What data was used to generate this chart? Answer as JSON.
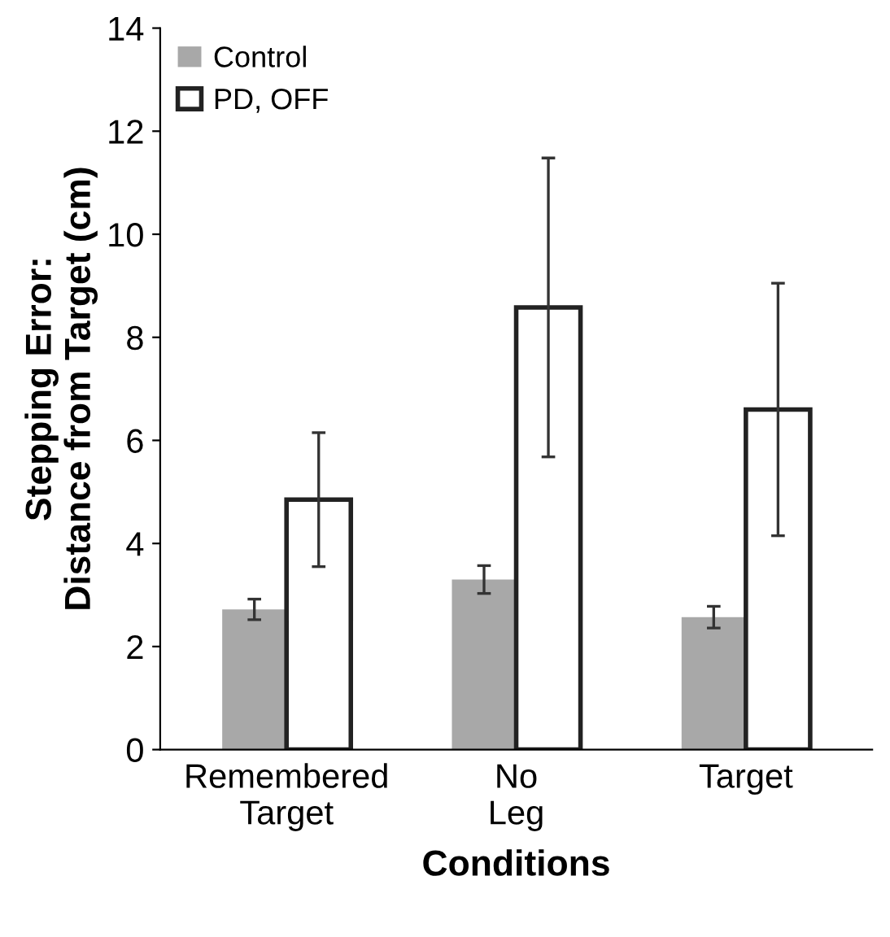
{
  "chart_data": {
    "type": "bar",
    "xlabel": "Conditions",
    "ylabel": "Stepping Error:\nDistance from Target (cm)",
    "categories": [
      "Remembered\nTarget",
      "No\nLeg",
      "Target"
    ],
    "series": [
      {
        "name": "Control",
        "color": "#a8a8a8",
        "values": [
          2.72,
          3.3,
          2.57
        ],
        "errors": [
          0.2,
          0.27,
          0.21
        ]
      },
      {
        "name": "PD, OFF",
        "color": "#ffffff",
        "values": [
          4.85,
          8.58,
          6.6
        ],
        "errors": [
          1.3,
          2.9,
          2.45
        ]
      }
    ],
    "ylim": [
      0,
      14
    ],
    "yticks": [
      0,
      2,
      4,
      6,
      8,
      10,
      12,
      14
    ],
    "grid": false,
    "legend": "top left"
  }
}
